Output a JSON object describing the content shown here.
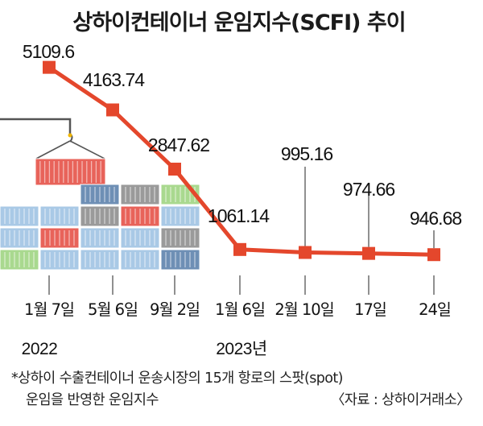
{
  "title": "상하이컨테이너 운임지수(SCFI) 추이",
  "colors": {
    "line": "#e4472c",
    "marker": "#e4472c",
    "guide": "#555555",
    "container_red": "#e8635a",
    "container_blue": "#a9c9e6",
    "container_gray": "#9a9a9a",
    "container_green": "#a9d98f",
    "container_steel": "#6e8fb5"
  },
  "chart_data": {
    "type": "line",
    "categories": [
      "1월 7일",
      "5월 6일",
      "9월 2일",
      "1월 6일",
      "2월 10일",
      "17일",
      "24일"
    ],
    "series": [
      {
        "values": [
          5109.6,
          4163.74,
          2847.62,
          1061.14,
          995.16,
          974.66,
          946.68
        ]
      }
    ],
    "data_labels": [
      "5109.6",
      "4163.74",
      "2847.62",
      "1061.14",
      "995.16",
      "974.66",
      "946.68"
    ],
    "year_labels": [
      {
        "text": "2022",
        "category_index": 0
      },
      {
        "text": "2023년",
        "category_index": 3
      }
    ],
    "grid": false,
    "legend": "none"
  },
  "notes": {
    "footnote_line1": "*상하이 수출컨테이너 운송시장의 15개 항로의 스팟(spot)",
    "footnote_line2": "운임을 반영한 운임지수",
    "source": "〈자료 : 상하이거래소〉"
  },
  "illustration": {
    "subject": "crane-hook-lifting-shipping-containers"
  }
}
